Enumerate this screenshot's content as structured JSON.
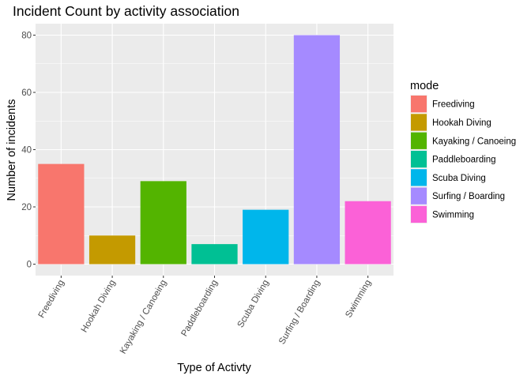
{
  "chart_data": {
    "type": "bar",
    "title": "Incident Count by activity association",
    "xlabel": "Type of Activty",
    "ylabel": "Number of incidents",
    "categories": [
      "Freediving",
      "Hookah Diving",
      "Kayaking / Canoeing",
      "Paddleboarding",
      "Scuba Diving",
      "Surfing / Boarding",
      "Swimming"
    ],
    "values": [
      35,
      10,
      29,
      7,
      19,
      80,
      22
    ],
    "colors": [
      "#F8766D",
      "#C49A00",
      "#53B400",
      "#00C094",
      "#00B6EB",
      "#A58AFF",
      "#FB61D7"
    ],
    "ylim": [
      -4,
      84
    ],
    "yticks": [
      0,
      20,
      40,
      60,
      80
    ],
    "ytick_labels": [
      "0",
      "20",
      "40",
      "60",
      "80"
    ],
    "grid": true,
    "panel_background": "#EBEBEB",
    "grid_color": "#FFFFFF",
    "legend": {
      "title": "mode",
      "position": "right",
      "entries": [
        "Freediving",
        "Hookah Diving",
        "Kayaking / Canoeing",
        "Paddleboarding",
        "Scuba Diving",
        "Surfing / Boarding",
        "Swimming"
      ]
    }
  }
}
